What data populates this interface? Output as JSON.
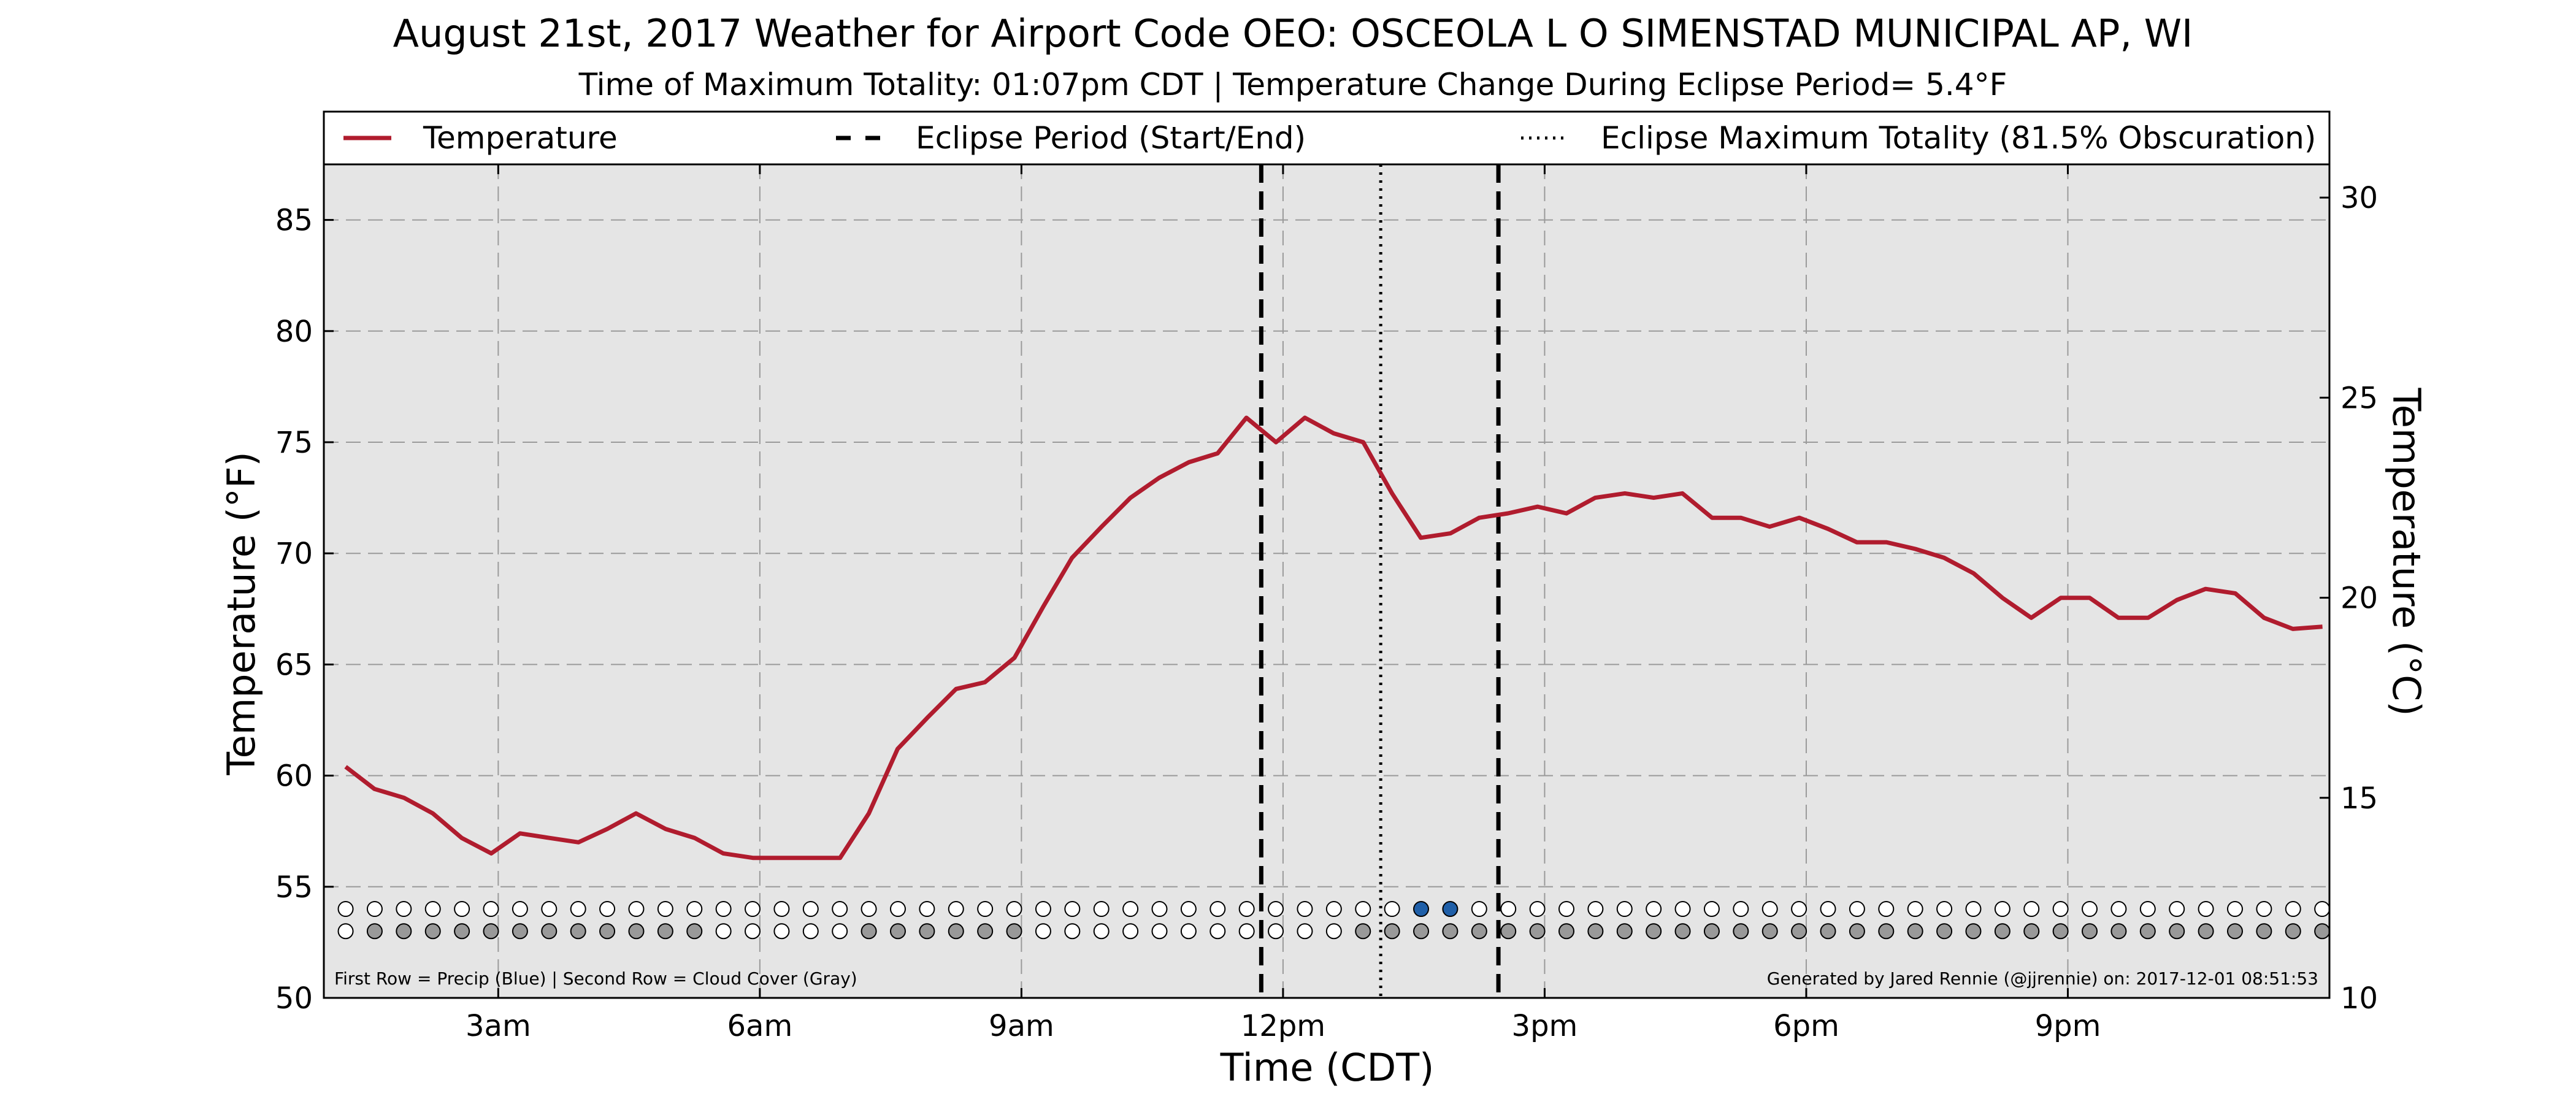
{
  "chart_data": {
    "type": "line",
    "title": "August 21st, 2017 Weather for Airport Code OEO: OSCEOLA L O SIMENSTAD MUNICIPAL AP, WI",
    "subtitle": "Time of Maximum Totality: 01:07pm CDT | Temperature Change During Eclipse Period= 5.4°F",
    "xlabel": "Time (CDT)",
    "ylabel": "Temperature (°F)",
    "ylabel_right": "Temperature (°C)",
    "x_ticks": [
      {
        "hour": 3,
        "label": "3am"
      },
      {
        "hour": 6,
        "label": "6am"
      },
      {
        "hour": 9,
        "label": "9am"
      },
      {
        "hour": 12,
        "label": "12pm"
      },
      {
        "hour": 15,
        "label": "3pm"
      },
      {
        "hour": 18,
        "label": "6pm"
      },
      {
        "hour": 21,
        "label": "9pm"
      }
    ],
    "xlim": [
      1.0,
      24.0
    ],
    "ylim": [
      50,
      87.5
    ],
    "y_ticks": [
      50,
      55,
      60,
      65,
      70,
      75,
      80,
      85
    ],
    "y2lim": [
      10,
      30.83
    ],
    "y2_ticks": [
      10,
      15,
      20,
      25,
      30
    ],
    "grid": true,
    "legend": {
      "placement": "top",
      "items": [
        {
          "label": "Temperature",
          "style": "solid",
          "color": "#b01c2e"
        },
        {
          "label": "Eclipse Period (Start/End)",
          "style": "dashed",
          "color": "#000000"
        },
        {
          "label": "Eclipse Maximum Totality (81.5% Obscuration)",
          "style": "dotted",
          "color": "#000000"
        }
      ]
    },
    "series": [
      {
        "name": "Temperature",
        "color": "#b01c2e",
        "x": [
          1.25,
          1.58,
          1.92,
          2.25,
          2.58,
          2.92,
          3.25,
          3.58,
          3.92,
          4.25,
          4.58,
          4.92,
          5.25,
          5.58,
          5.92,
          6.25,
          6.58,
          6.92,
          7.25,
          7.58,
          7.92,
          8.25,
          8.58,
          8.92,
          9.25,
          9.58,
          9.92,
          10.25,
          10.58,
          10.92,
          11.25,
          11.58,
          11.92,
          12.25,
          12.58,
          12.92,
          13.25,
          13.58,
          13.92,
          14.25,
          14.58,
          14.92,
          15.25,
          15.58,
          15.92,
          16.25,
          16.58,
          16.92,
          17.25,
          17.58,
          17.92,
          18.25,
          18.58,
          18.92,
          19.25,
          19.58,
          19.92,
          20.25,
          20.58,
          20.92,
          21.25,
          21.58,
          21.92,
          22.25,
          22.58,
          22.92,
          23.25,
          23.58,
          23.92
        ],
        "values": [
          60.4,
          59.4,
          59.0,
          58.3,
          57.2,
          56.5,
          57.4,
          57.2,
          57.0,
          57.6,
          58.3,
          57.6,
          57.2,
          56.5,
          56.3,
          56.3,
          56.3,
          56.3,
          58.3,
          61.2,
          62.6,
          63.9,
          64.2,
          65.3,
          67.6,
          69.8,
          71.2,
          72.5,
          73.4,
          74.1,
          74.5,
          76.1,
          75.0,
          76.1,
          75.4,
          75.0,
          72.7,
          70.7,
          70.9,
          71.6,
          71.8,
          72.1,
          71.8,
          72.5,
          72.7,
          72.5,
          72.7,
          71.6,
          71.6,
          71.2,
          71.6,
          71.1,
          70.5,
          70.5,
          70.2,
          69.8,
          69.1,
          68.0,
          67.1,
          68.0,
          68.0,
          67.1,
          67.1,
          67.9,
          68.4,
          68.2,
          67.1,
          66.6,
          66.7
        ]
      }
    ],
    "eclipse": {
      "start_hour": 11.75,
      "end_hour": 14.47,
      "max_totality_hour": 13.12
    },
    "indicator_rows": {
      "note_left": "First Row = Precip (Blue) | Second Row = Cloud Cover (Gray)",
      "note_right": "Generated by Jared Rennie (@jjrennie) on: 2017-12-01 08:51:53",
      "precip_color": "#1f5fa8",
      "cloud_color": "#999999",
      "precip": [
        0,
        0,
        0,
        0,
        0,
        0,
        0,
        0,
        0,
        0,
        0,
        0,
        0,
        0,
        0,
        0,
        0,
        0,
        0,
        0,
        0,
        0,
        0,
        0,
        0,
        0,
        0,
        0,
        0,
        0,
        0,
        0,
        0,
        0,
        0,
        0,
        0,
        1,
        1,
        0,
        0,
        0,
        0,
        0,
        0,
        0,
        0,
        0,
        0,
        0,
        0,
        0,
        0,
        0,
        0,
        0,
        0,
        0,
        0,
        0,
        0,
        0,
        0,
        0,
        0,
        0,
        0,
        0,
        0,
        0
      ],
      "cloud": [
        0,
        1,
        1,
        1,
        1,
        1,
        1,
        1,
        1,
        1,
        1,
        1,
        1,
        0,
        0,
        0,
        0,
        0,
        1,
        1,
        1,
        1,
        1,
        1,
        0,
        0,
        0,
        0,
        0,
        0,
        0,
        0,
        0,
        0,
        0,
        1,
        1,
        1,
        1,
        1,
        1,
        1,
        1,
        1,
        1,
        1,
        1,
        1,
        1,
        1,
        1,
        1,
        1,
        1,
        1,
        1,
        1,
        1,
        1,
        1,
        1,
        1,
        1,
        1,
        1,
        1,
        1,
        1,
        1,
        1
      ]
    }
  }
}
